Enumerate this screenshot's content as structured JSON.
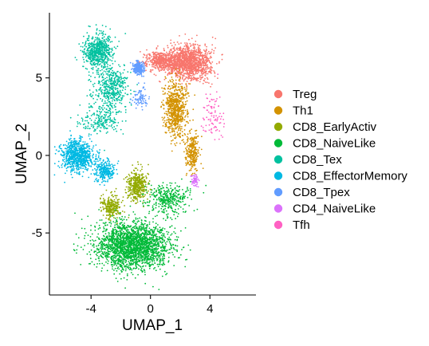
{
  "chart_data": {
    "type": "scatter",
    "title": "",
    "xlabel": "UMAP_1",
    "ylabel": "UMAP_2",
    "xlim": [
      -6.8,
      7.1
    ],
    "ylim": [
      -9.0,
      9.2
    ],
    "xticks": [
      -4,
      0,
      4
    ],
    "xtick_labels": [
      "-4",
      "0",
      "4"
    ],
    "yticks": [
      -5,
      0,
      5
    ],
    "ytick_labels": [
      "-5",
      "0",
      "5"
    ],
    "grid": false,
    "legend_position": "right",
    "series": [
      {
        "name": "Treg",
        "color": "#F8766D",
        "clusters": [
          {
            "center": [
              2.6,
              6.0
            ],
            "spread": [
              1.3,
              1.0
            ],
            "n": 1300
          },
          {
            "center": [
              0.8,
              6.1
            ],
            "spread": [
              1.0,
              0.6
            ],
            "n": 500
          }
        ]
      },
      {
        "name": "Th1",
        "color": "#D39200",
        "clusters": [
          {
            "center": [
              1.7,
              3.0
            ],
            "spread": [
              0.7,
              1.6
            ],
            "n": 700
          },
          {
            "center": [
              2.8,
              0.2
            ],
            "spread": [
              0.4,
              1.0
            ],
            "n": 300
          }
        ]
      },
      {
        "name": "CD8_EarlyActiv",
        "color": "#93AA00",
        "clusters": [
          {
            "center": [
              -0.9,
              -2.0
            ],
            "spread": [
              0.6,
              0.9
            ],
            "n": 400
          },
          {
            "center": [
              -2.6,
              -3.3
            ],
            "spread": [
              0.6,
              0.7
            ],
            "n": 250
          }
        ]
      },
      {
        "name": "CD8_NaiveLike",
        "color": "#00BA38",
        "clusters": [
          {
            "center": [
              -1.2,
              -5.8
            ],
            "spread": [
              2.3,
              1.4
            ],
            "n": 2200
          },
          {
            "center": [
              1.2,
              -2.8
            ],
            "spread": [
              1.4,
              0.9
            ],
            "n": 350
          }
        ]
      },
      {
        "name": "CD8_Tex",
        "color": "#00C19F",
        "clusters": [
          {
            "center": [
              -3.6,
              6.7
            ],
            "spread": [
              0.9,
              1.0
            ],
            "n": 600
          },
          {
            "center": [
              -2.6,
              4.3
            ],
            "spread": [
              1.0,
              1.3
            ],
            "n": 450
          },
          {
            "center": [
              -3.5,
              2.3
            ],
            "spread": [
              1.2,
              0.8
            ],
            "n": 200
          }
        ]
      },
      {
        "name": "CD8_EffectorMemory",
        "color": "#00B9E3",
        "clusters": [
          {
            "center": [
              -4.9,
              0.0
            ],
            "spread": [
              1.0,
              0.9
            ],
            "n": 800
          },
          {
            "center": [
              -3.1,
              -1.0
            ],
            "spread": [
              0.6,
              0.6
            ],
            "n": 250
          }
        ]
      },
      {
        "name": "CD8_Tpex",
        "color": "#619CFF",
        "clusters": [
          {
            "center": [
              -0.8,
              5.6
            ],
            "spread": [
              0.35,
              0.35
            ],
            "n": 250
          },
          {
            "center": [
              -0.7,
              3.7
            ],
            "spread": [
              0.5,
              0.6
            ],
            "n": 80
          }
        ]
      },
      {
        "name": "CD4_NaiveLike",
        "color": "#DB72FB",
        "clusters": [
          {
            "center": [
              3.0,
              -1.6
            ],
            "spread": [
              0.2,
              0.35
            ],
            "n": 70
          }
        ]
      },
      {
        "name": "Tfh",
        "color": "#FF61C3",
        "clusters": [
          {
            "center": [
              4.2,
              2.6
            ],
            "spread": [
              0.7,
              1.4
            ],
            "n": 90
          }
        ]
      }
    ]
  }
}
